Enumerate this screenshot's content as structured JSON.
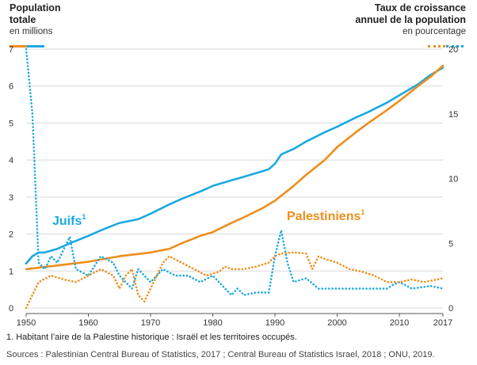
{
  "header_left": {
    "title_line1": "Population",
    "title_line2": "totale",
    "unit": "en millions"
  },
  "header_right": {
    "title_line1": "Taux de croissance",
    "title_line2": "annuel de la population",
    "unit": "en pourcentage"
  },
  "colors": {
    "jews": "#1ba9e1",
    "palestinians": "#ee8e1c",
    "gridline": "#d9d9d9",
    "axis": "#555555"
  },
  "labels": {
    "jews": "Juifs",
    "jews_sup": "1",
    "palestinians": "Palestiniens",
    "palestinians_sup": "1"
  },
  "footnote": "1. Habitant l’aire de la Palestine historique : Israël et les territoires occupés.",
  "sources": "Sources : Palestinian Central Bureau of Statistics, 2017 ; Central Bureau of Statistics Israel, 2018 ; ONU, 2019.",
  "chart_data": {
    "type": "line",
    "x_ticks": [
      "1950",
      "1960",
      "1970",
      "1980",
      "1990",
      "2000",
      "2010",
      "2017"
    ],
    "x_range": [
      1950,
      2017
    ],
    "y_left": {
      "label": "Population totale (en millions)",
      "range": [
        0,
        7
      ],
      "ticks": [
        "0",
        "1",
        "2",
        "3",
        "4",
        "5",
        "6",
        "7"
      ]
    },
    "y_right": {
      "label": "Taux de croissance annuel de la population (en pourcentage)",
      "range": [
        0,
        20
      ],
      "ticks": [
        "0",
        "5",
        "10",
        "15",
        "20"
      ]
    },
    "series": [
      {
        "name": "Juifs — population totale (millions)",
        "axis": "left",
        "style": "solid",
        "color_key": "jews",
        "x": [
          1950,
          1951,
          1952,
          1953,
          1955,
          1957,
          1960,
          1962,
          1965,
          1968,
          1970,
          1973,
          1975,
          1978,
          1980,
          1983,
          1985,
          1988,
          1989,
          1990,
          1991,
          1993,
          1995,
          1998,
          2000,
          2003,
          2005,
          2008,
          2010,
          2013,
          2015,
          2017
        ],
        "values": [
          1.2,
          1.4,
          1.5,
          1.5,
          1.6,
          1.75,
          1.95,
          2.1,
          2.3,
          2.4,
          2.55,
          2.8,
          2.95,
          3.15,
          3.3,
          3.45,
          3.55,
          3.7,
          3.75,
          3.9,
          4.15,
          4.3,
          4.5,
          4.75,
          4.9,
          5.15,
          5.3,
          5.55,
          5.75,
          6.05,
          6.3,
          6.5
        ]
      },
      {
        "name": "Palestiniens — population totale (millions)",
        "axis": "left",
        "style": "solid",
        "color_key": "palestinians",
        "x": [
          1950,
          1955,
          1960,
          1965,
          1970,
          1973,
          1975,
          1978,
          1980,
          1983,
          1985,
          1988,
          1990,
          1993,
          1995,
          1998,
          2000,
          2003,
          2005,
          2008,
          2010,
          2013,
          2015,
          2017
        ],
        "values": [
          1.05,
          1.15,
          1.25,
          1.4,
          1.5,
          1.6,
          1.75,
          1.95,
          2.05,
          2.3,
          2.45,
          2.7,
          2.9,
          3.3,
          3.6,
          4.0,
          4.35,
          4.75,
          5.0,
          5.35,
          5.6,
          6.0,
          6.25,
          6.55
        ]
      },
      {
        "name": "Juifs — taux de croissance annuel (%)",
        "axis": "right",
        "style": "dotted",
        "color_key": "jews",
        "x": [
          1950,
          1951,
          1952,
          1953,
          1954,
          1955,
          1956,
          1957,
          1958,
          1960,
          1962,
          1964,
          1965,
          1966,
          1967,
          1968,
          1969,
          1970,
          1972,
          1974,
          1976,
          1978,
          1980,
          1982,
          1983,
          1984,
          1985,
          1987,
          1989,
          1990,
          1991,
          1992,
          1993,
          1995,
          1997,
          2000,
          2003,
          2006,
          2008,
          2009,
          2010,
          2012,
          2015,
          2017
        ],
        "values": [
          20,
          15,
          3.5,
          3,
          4,
          3.5,
          4.5,
          5.5,
          3,
          2.5,
          4,
          3.5,
          2.5,
          2,
          1.5,
          3,
          2.5,
          2,
          3,
          2.5,
          2.5,
          2,
          2.5,
          1.5,
          1,
          1.5,
          1,
          1.2,
          1.2,
          4,
          6,
          3.5,
          2,
          2.3,
          1.5,
          1.5,
          1.5,
          1.5,
          1.5,
          1.8,
          2,
          1.5,
          1.7,
          1.5
        ]
      },
      {
        "name": "Palestiniens — taux de croissance annuel (%)",
        "axis": "right",
        "style": "dotted",
        "color_key": "palestinians",
        "x": [
          1950,
          1951,
          1952,
          1954,
          1956,
          1958,
          1960,
          1962,
          1964,
          1965,
          1966,
          1967,
          1968,
          1969,
          1970,
          1971,
          1972,
          1973,
          1975,
          1977,
          1979,
          1981,
          1982,
          1983,
          1985,
          1987,
          1989,
          1990,
          1991,
          1993,
          1995,
          1996,
          1997,
          1998,
          2000,
          2002,
          2004,
          2006,
          2008,
          2010,
          2012,
          2014,
          2017
        ],
        "values": [
          0,
          1,
          2,
          2.5,
          2.2,
          2,
          2.5,
          3,
          2.5,
          1.5,
          2.5,
          3,
          1,
          0.5,
          1.5,
          2.5,
          3.5,
          4,
          3.5,
          3,
          2.5,
          2.8,
          3.2,
          3,
          3,
          3.2,
          3.5,
          4,
          4.2,
          4.3,
          4.2,
          3,
          4,
          3.8,
          3.5,
          3,
          2.8,
          2.5,
          2,
          2,
          2.2,
          2,
          2.3
        ]
      }
    ]
  }
}
